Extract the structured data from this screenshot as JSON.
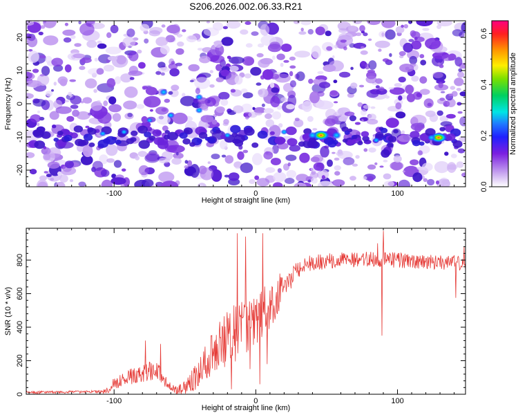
{
  "title": "S206.2026.002.06.33.R21",
  "chart_data": [
    {
      "type": "heatmap",
      "xlabel": "Height of straight line (km)",
      "ylabel": "Frequency (Hz)",
      "xlim": [
        -162,
        148
      ],
      "ylim": [
        -25,
        25
      ],
      "x_ticks": [
        -100,
        0,
        100
      ],
      "y_ticks": [
        -20,
        -10,
        0,
        10,
        20
      ],
      "x_tick_labels": [
        "-100",
        "0",
        "100"
      ],
      "y_tick_labels": [
        "-20",
        "-10",
        "0",
        "10",
        "20"
      ],
      "colorbar": {
        "label": "Normalized spectral amplitude",
        "range": [
          0.0,
          0.65
        ],
        "ticks": [
          0.0,
          0.2,
          0.4,
          0.6
        ],
        "tick_labels": [
          "0.0",
          "0.2",
          "0.4",
          "0.6"
        ]
      },
      "background_blobs": 900,
      "band": {
        "frequency": -10,
        "from": -160,
        "to": 145
      },
      "peaks": [
        {
          "x": 46,
          "y": -9.5,
          "value": 0.6
        },
        {
          "x": 129,
          "y": -10.2,
          "value": 0.55
        },
        {
          "x": 57,
          "y": -9.5,
          "value": 0.28
        },
        {
          "x": 40,
          "y": -9.5,
          "value": 0.25
        },
        {
          "x": 124,
          "y": -10.2,
          "value": 0.22
        },
        {
          "x": -65,
          "y": 3.5,
          "value": 0.22
        },
        {
          "x": -40,
          "y": 2.0,
          "value": 0.2
        },
        {
          "x": -40,
          "y": -2.0,
          "value": 0.18
        },
        {
          "x": -60,
          "y": -3.5,
          "value": 0.18
        },
        {
          "x": -108,
          "y": -9.0,
          "value": 0.15
        },
        {
          "x": -93,
          "y": -8.5,
          "value": 0.15
        },
        {
          "x": -20,
          "y": -9.5,
          "value": 0.15
        },
        {
          "x": 20,
          "y": -8.5,
          "value": 0.15
        },
        {
          "x": 85,
          "y": -11.0,
          "value": 0.15
        },
        {
          "x": -75,
          "y": -5.0,
          "value": 0.12
        }
      ]
    },
    {
      "type": "line",
      "xlabel": "Height of straight line (km)",
      "ylabel": "SNR (10 * v/v)",
      "xlim": [
        -162,
        148
      ],
      "ylim": [
        0,
        990
      ],
      "x_ticks": [
        -100,
        0,
        100
      ],
      "y_ticks": [
        0,
        200,
        400,
        600,
        800
      ],
      "x_tick_labels": [
        "-100",
        "0",
        "100"
      ],
      "y_tick_labels": [
        "0",
        "200",
        "400",
        "600",
        "800"
      ],
      "color": "#e53935",
      "n_samples": 900,
      "baseline": [
        [
          -162,
          10
        ],
        [
          -105,
          15
        ],
        [
          -100,
          60
        ],
        [
          -90,
          100
        ],
        [
          -80,
          110
        ],
        [
          -75,
          140
        ],
        [
          -68,
          120
        ],
        [
          -62,
          50
        ],
        [
          -55,
          10
        ],
        [
          -48,
          50
        ],
        [
          -42,
          100
        ],
        [
          -35,
          190
        ],
        [
          -25,
          280
        ],
        [
          -18,
          340
        ],
        [
          -10,
          360
        ],
        [
          -5,
          420
        ],
        [
          0,
          430
        ],
        [
          5,
          470
        ],
        [
          10,
          520
        ],
        [
          15,
          560
        ],
        [
          20,
          620
        ],
        [
          28,
          720
        ],
        [
          35,
          770
        ],
        [
          50,
          790
        ],
        [
          70,
          800
        ],
        [
          90,
          800
        ],
        [
          110,
          790
        ],
        [
          130,
          785
        ],
        [
          148,
          775
        ]
      ],
      "noise_anchors": [
        [
          -162,
          10
        ],
        [
          -110,
          10
        ],
        [
          -100,
          45
        ],
        [
          -70,
          80
        ],
        [
          -60,
          30
        ],
        [
          -50,
          60
        ],
        [
          -35,
          140
        ],
        [
          -20,
          210
        ],
        [
          -5,
          220
        ],
        [
          10,
          180
        ],
        [
          20,
          110
        ],
        [
          30,
          60
        ],
        [
          148,
          55
        ]
      ],
      "spikes": [
        {
          "x": -13,
          "y": 960
        },
        {
          "x": -17,
          "y": 30
        },
        {
          "x": -7,
          "y": 940
        },
        {
          "x": 5,
          "y": 960
        },
        {
          "x": -4,
          "y": 150
        },
        {
          "x": 8,
          "y": 180
        },
        {
          "x": 3,
          "y": 60
        },
        {
          "x": 89,
          "y": 350
        },
        {
          "x": 86,
          "y": 900
        },
        {
          "x": 90,
          "y": 975
        },
        {
          "x": 141,
          "y": 575
        },
        {
          "x": -78,
          "y": 320
        },
        {
          "x": -67,
          "y": 300
        },
        {
          "x": 17,
          "y": 720
        },
        {
          "x": 147,
          "y": 880
        }
      ]
    }
  ]
}
